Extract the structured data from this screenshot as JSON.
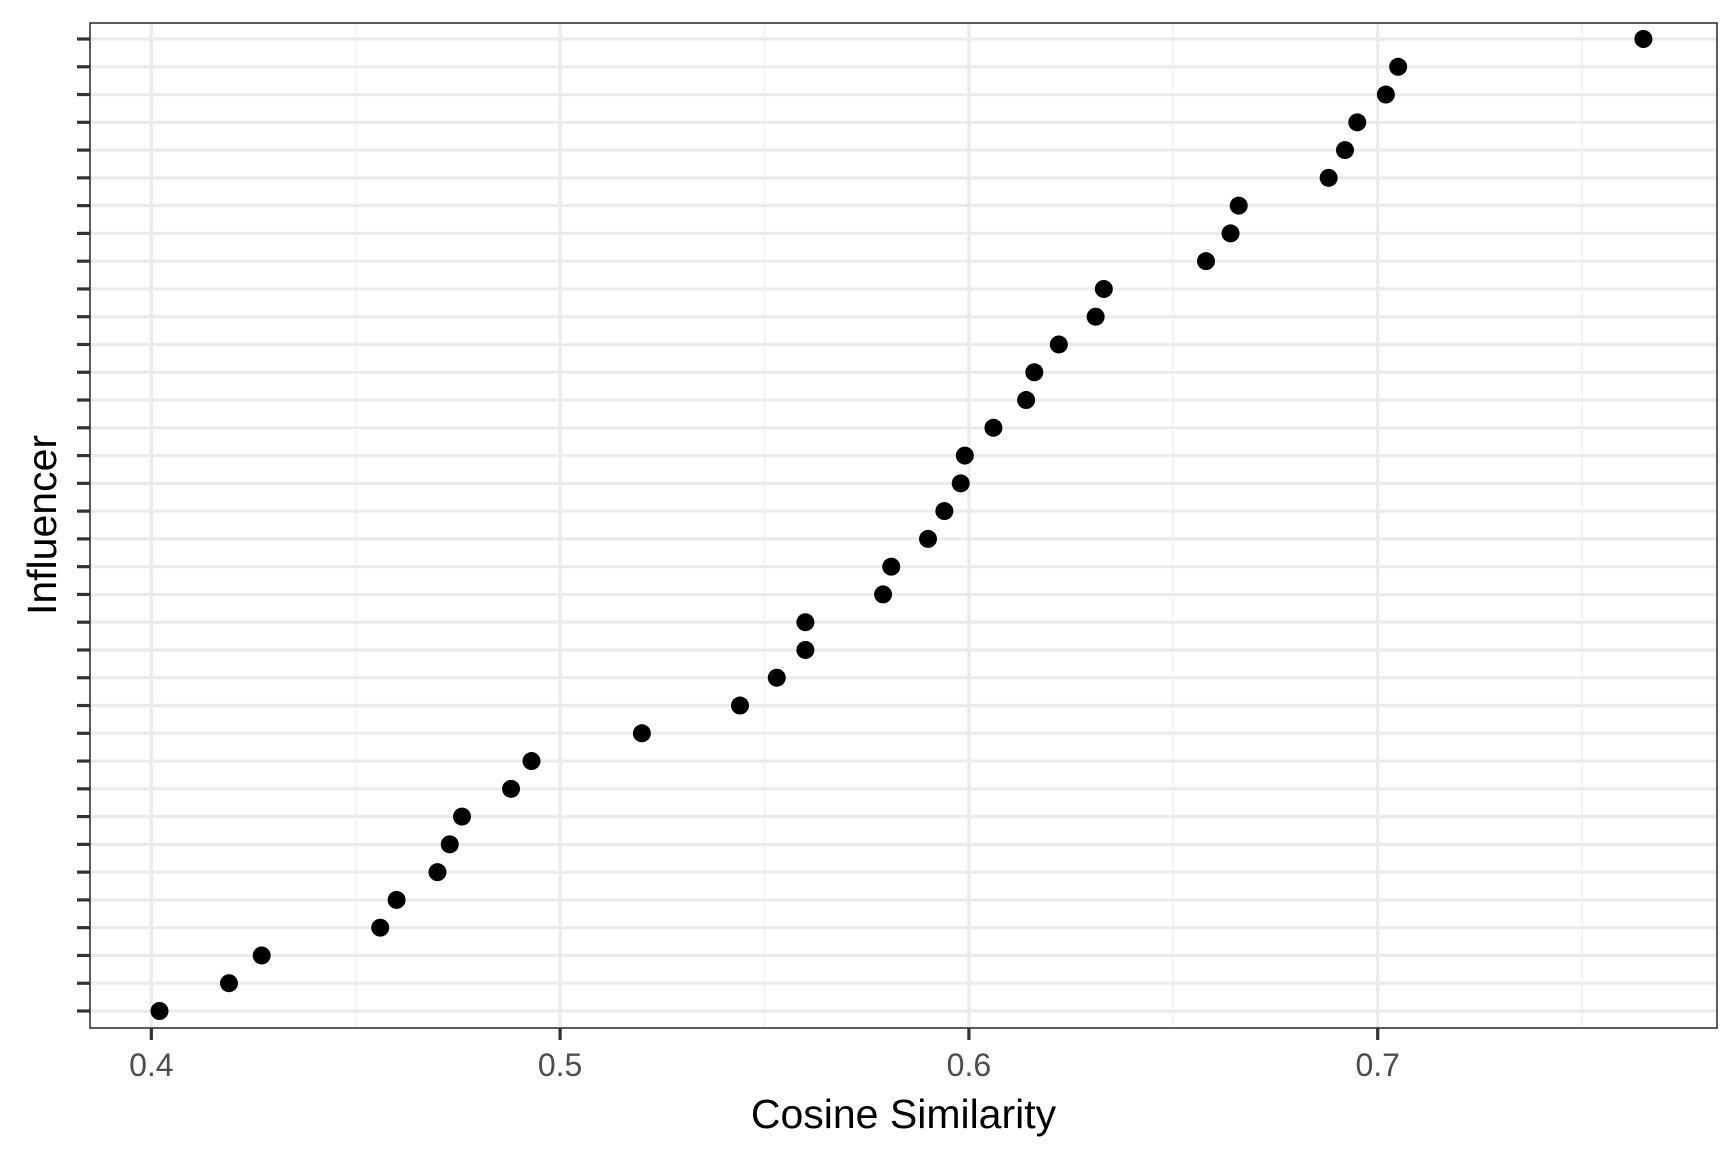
{
  "chart_data": {
    "type": "scatter",
    "title": "",
    "xlabel": "Cosine Similarity",
    "ylabel": "Influencer",
    "xlim": [
      0.385,
      0.783
    ],
    "x_ticks": [
      0.4,
      0.5,
      0.6,
      0.7
    ],
    "x_tick_labels": [
      "0.4",
      "0.5",
      "0.6",
      "0.7"
    ],
    "y_categories_count": 36,
    "y_tick_labels_shown": false,
    "grid": true,
    "legend": "none",
    "point_color": "#000000",
    "points": [
      {
        "rank": 1,
        "x": 0.402
      },
      {
        "rank": 2,
        "x": 0.419
      },
      {
        "rank": 3,
        "x": 0.427
      },
      {
        "rank": 4,
        "x": 0.456
      },
      {
        "rank": 5,
        "x": 0.46
      },
      {
        "rank": 6,
        "x": 0.47
      },
      {
        "rank": 7,
        "x": 0.473
      },
      {
        "rank": 8,
        "x": 0.476
      },
      {
        "rank": 9,
        "x": 0.488
      },
      {
        "rank": 10,
        "x": 0.493
      },
      {
        "rank": 11,
        "x": 0.52
      },
      {
        "rank": 12,
        "x": 0.544
      },
      {
        "rank": 13,
        "x": 0.553
      },
      {
        "rank": 14,
        "x": 0.56
      },
      {
        "rank": 15,
        "x": 0.56
      },
      {
        "rank": 16,
        "x": 0.579
      },
      {
        "rank": 17,
        "x": 0.581
      },
      {
        "rank": 18,
        "x": 0.59
      },
      {
        "rank": 19,
        "x": 0.594
      },
      {
        "rank": 20,
        "x": 0.598
      },
      {
        "rank": 21,
        "x": 0.599
      },
      {
        "rank": 22,
        "x": 0.606
      },
      {
        "rank": 23,
        "x": 0.614
      },
      {
        "rank": 24,
        "x": 0.616
      },
      {
        "rank": 25,
        "x": 0.622
      },
      {
        "rank": 26,
        "x": 0.631
      },
      {
        "rank": 27,
        "x": 0.633
      },
      {
        "rank": 28,
        "x": 0.658
      },
      {
        "rank": 29,
        "x": 0.664
      },
      {
        "rank": 30,
        "x": 0.666
      },
      {
        "rank": 31,
        "x": 0.688
      },
      {
        "rank": 32,
        "x": 0.692
      },
      {
        "rank": 33,
        "x": 0.695
      },
      {
        "rank": 34,
        "x": 0.702
      },
      {
        "rank": 35,
        "x": 0.705
      },
      {
        "rank": 36,
        "x": 0.765
      }
    ]
  }
}
